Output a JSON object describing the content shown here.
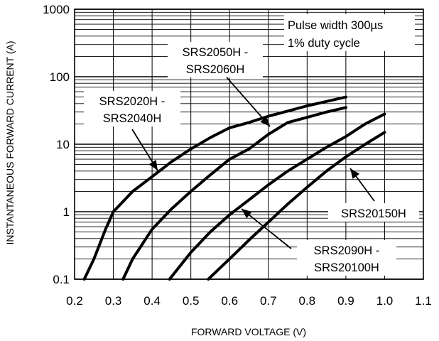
{
  "chart_data": {
    "type": "line",
    "title": "",
    "xlabel": "FORWARD VOLTAGE (V)",
    "ylabel": "INSTANTANEOUS FORWARD CURRENT (A)",
    "xlim": [
      0.2,
      1.1
    ],
    "ylim": [
      0.1,
      1000
    ],
    "y_scale": "log",
    "grid": true,
    "x_ticks": [
      "0.2",
      "0.3",
      "0.4",
      "0.5",
      "0.6",
      "0.7",
      "0.8",
      "0.9",
      "1.0",
      "1.1"
    ],
    "y_ticks": [
      "0.1",
      "1",
      "10",
      "100",
      "1000"
    ],
    "series": [
      {
        "x": [
          0.225,
          0.25,
          0.28,
          0.3,
          0.35,
          0.4,
          0.45,
          0.5,
          0.55,
          0.6,
          0.65,
          0.7,
          0.75,
          0.8,
          0.85,
          0.9
        ],
        "y": [
          0.1,
          0.2,
          0.55,
          1.0,
          2.0,
          3.3,
          5.5,
          8.5,
          12.5,
          17.5,
          21.0,
          26.0,
          31.0,
          37.0,
          43.0,
          50.0
        ]
      },
      {
        "x": [
          0.325,
          0.35,
          0.4,
          0.45,
          0.5,
          0.55,
          0.6,
          0.65,
          0.7,
          0.75,
          0.8,
          0.85,
          0.9
        ],
        "y": [
          0.1,
          0.2,
          0.55,
          1.1,
          2.0,
          3.5,
          6.0,
          8.5,
          14.0,
          21.0,
          25.0,
          30.0,
          35.0
        ]
      },
      {
        "x": [
          0.445,
          0.5,
          0.55,
          0.6,
          0.65,
          0.7,
          0.75,
          0.8,
          0.85,
          0.9,
          0.95,
          1.0
        ],
        "y": [
          0.1,
          0.25,
          0.5,
          0.9,
          1.5,
          2.5,
          4.0,
          6.0,
          9.0,
          13.0,
          20.0,
          28.0
        ]
      },
      {
        "x": [
          0.545,
          0.6,
          0.65,
          0.7,
          0.75,
          0.8,
          0.85,
          0.9,
          0.95,
          1.0
        ],
        "y": [
          0.1,
          0.2,
          0.38,
          0.7,
          1.3,
          2.3,
          4.0,
          6.5,
          10.0,
          15.0
        ]
      }
    ],
    "annotations": [
      {
        "lines": [
          "Pulse width 300µs",
          "1% duty cycle"
        ]
      },
      {
        "lines": [
          "SRS2050H -",
          "SRS2060H"
        ]
      },
      {
        "lines": [
          "SRS2020H -",
          "SRS2040H"
        ]
      },
      {
        "lines": [
          "SRS20150H"
        ]
      },
      {
        "lines": [
          "SRS2090H -",
          "SRS20100H"
        ]
      }
    ]
  }
}
